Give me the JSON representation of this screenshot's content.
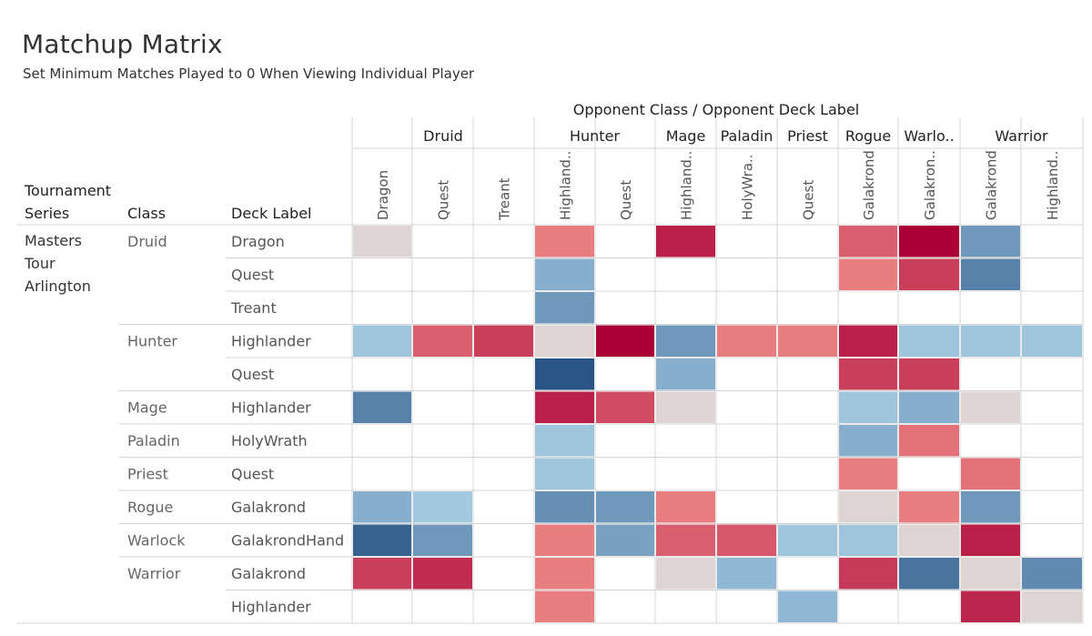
{
  "title": "Matchup Matrix",
  "subtitle": "Set Minimum Matches Played to 0 When Viewing Individual Player",
  "chart_data": {
    "type": "heatmap",
    "title": "Matchup Matrix",
    "subtitle": "Set Minimum Matches Played to 0 When Viewing Individual Player",
    "column_header": "Opponent Class  /  Opponent Deck Label",
    "row_headers": [
      "Tournament Series",
      "Class",
      "Deck Label"
    ],
    "tournament_series": "Masters Tour Arlington",
    "column_groups": [
      {
        "class": "Druid",
        "decks": [
          "Dragon",
          "Quest",
          "Treant"
        ]
      },
      {
        "class": "Hunter",
        "decks": [
          "Highland..",
          "Quest"
        ]
      },
      {
        "class": "Mage",
        "decks": [
          "Highland.."
        ]
      },
      {
        "class": "Paladin",
        "decks": [
          "HolyWra.."
        ]
      },
      {
        "class": "Priest",
        "decks": [
          "Quest"
        ]
      },
      {
        "class": "Rogue",
        "decks": [
          "Galakrond"
        ]
      },
      {
        "class": "Warlo..",
        "decks": [
          "Galakron.."
        ]
      },
      {
        "class": "Warrior",
        "decks": [
          "Galakrond",
          "Highland.."
        ]
      }
    ],
    "rows": [
      {
        "class": "Druid",
        "deck": "Dragon"
      },
      {
        "class": "",
        "deck": "Quest"
      },
      {
        "class": "",
        "deck": "Treant"
      },
      {
        "class": "Hunter",
        "deck": "Highlander"
      },
      {
        "class": "",
        "deck": "Quest"
      },
      {
        "class": "Mage",
        "deck": "Highlander"
      },
      {
        "class": "Paladin",
        "deck": "HolyWrath"
      },
      {
        "class": "Priest",
        "deck": "Quest"
      },
      {
        "class": "Rogue",
        "deck": "Galakrond"
      },
      {
        "class": "Warlock",
        "deck": "GalakrondHand"
      },
      {
        "class": "Warrior",
        "deck": "Galakrond"
      },
      {
        "class": "",
        "deck": "Highlander"
      }
    ],
    "value_scale": "diverging: negative = blue (unfavorable), 0 = neutral grey, positive = red (favorable); null = no data",
    "value_range": [
      -3,
      3
    ],
    "values": [
      [
        0,
        null,
        null,
        1,
        null,
        2.5,
        null,
        null,
        1.5,
        3,
        -1.5,
        null
      ],
      [
        null,
        null,
        null,
        -1,
        null,
        null,
        null,
        null,
        1,
        2,
        -2,
        null
      ],
      [
        null,
        null,
        null,
        -1.5,
        null,
        null,
        null,
        null,
        null,
        null,
        null,
        null
      ],
      [
        -0.5,
        1.5,
        2,
        0,
        3,
        -1.5,
        1,
        1,
        2.5,
        -0.5,
        -0.5,
        -0.5
      ],
      [
        null,
        null,
        null,
        -3,
        null,
        -1,
        null,
        null,
        2,
        2,
        null,
        null
      ],
      [
        -2,
        null,
        null,
        2.5,
        1.8,
        0,
        null,
        null,
        -0.5,
        -1,
        0,
        null
      ],
      [
        null,
        null,
        null,
        -0.5,
        null,
        null,
        null,
        null,
        -1,
        1.2,
        null,
        null
      ],
      [
        null,
        null,
        null,
        -0.5,
        null,
        null,
        null,
        null,
        1,
        null,
        1.2,
        null
      ],
      [
        -1,
        -0.4,
        null,
        -1.7,
        -1.5,
        1,
        null,
        null,
        0,
        1,
        -1.5,
        null
      ],
      [
        -2.7,
        -1.5,
        null,
        1,
        -1.3,
        1.5,
        1.6,
        -0.5,
        -0.5,
        0,
        2.5,
        null
      ],
      [
        2,
        2.3,
        null,
        1,
        null,
        0,
        -0.8,
        null,
        2.1,
        -2.3,
        0,
        -1.8
      ],
      [
        null,
        null,
        null,
        1,
        null,
        null,
        null,
        -0.8,
        null,
        null,
        2.4,
        0
      ]
    ]
  }
}
